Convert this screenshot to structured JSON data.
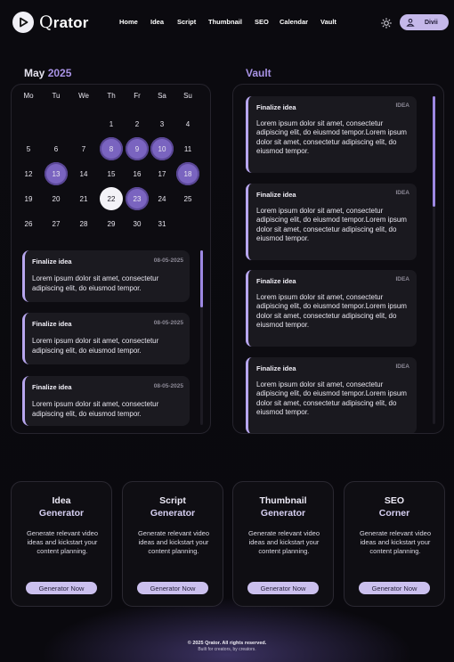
{
  "brand": {
    "name": "Qrator",
    "initial": "Q",
    "rest": "rator"
  },
  "nav": [
    "Home",
    "Idea",
    "Script",
    "Thumbnail",
    "SEO",
    "Calendar",
    "Vault"
  ],
  "user": {
    "name": "Divii"
  },
  "calendar": {
    "month": "May",
    "year": "2025",
    "weekdays": [
      "Mo",
      "Tu",
      "We",
      "Th",
      "Fr",
      "Sa",
      "Su"
    ],
    "days": [
      "1",
      "2",
      "3",
      "4",
      "5",
      "6",
      "7",
      "8",
      "9",
      "10",
      "11",
      "12",
      "13",
      "14",
      "15",
      "16",
      "17",
      "18",
      "19",
      "20",
      "21",
      "22",
      "23",
      "24",
      "25",
      "26",
      "27",
      "28",
      "29",
      "30",
      "31"
    ],
    "highlighted_days": [
      8,
      9,
      10,
      13,
      18,
      23
    ],
    "today": 22
  },
  "calendar_cards": [
    {
      "title": "Finalize idea",
      "date": "08-05-2025",
      "body": "Lorem ipsum dolor sit amet, consectetur adipiscing elit, do eiusmod tempor."
    },
    {
      "title": "Finalize idea",
      "date": "08-05-2025",
      "body": "Lorem ipsum dolor sit amet, consectetur adipiscing elit, do eiusmod tempor."
    },
    {
      "title": "Finalize idea",
      "date": "08-05-2025",
      "body": "Lorem ipsum dolor sit amet, consectetur adipiscing elit, do eiusmod tempor."
    }
  ],
  "vault": {
    "title": "Vault",
    "cards": [
      {
        "title": "Finalize idea",
        "tag": "IDEA",
        "body": "Lorem ipsum dolor sit amet, consectetur adipiscing elit, do eiusmod tempor.Lorem ipsum dolor sit amet, consectetur adipiscing elit, do eiusmod tempor."
      },
      {
        "title": "Finalize idea",
        "tag": "IDEA",
        "body": "Lorem ipsum dolor sit amet, consectetur adipiscing elit, do eiusmod tempor.Lorem ipsum dolor sit amet, consectetur adipiscing elit, do eiusmod tempor."
      },
      {
        "title": "Finalize idea",
        "tag": "IDEA",
        "body": "Lorem ipsum dolor sit amet, consectetur adipiscing elit, do eiusmod tempor.Lorem ipsum dolor sit amet, consectetur adipiscing elit, do eiusmod tempor."
      },
      {
        "title": "Finalize idea",
        "tag": "IDEA",
        "body": "Lorem ipsum dolor sit amet, consectetur adipiscing elit, do eiusmod tempor.Lorem ipsum dolor sit amet, consectetur adipiscing elit, do eiusmod tempor."
      }
    ]
  },
  "tools": [
    {
      "line1": "Idea",
      "line2": "Generator",
      "desc": "Generate relevant video ideas and kickstart your content planning.",
      "button": "Generator Now"
    },
    {
      "line1": "Script",
      "line2": "Generator",
      "desc": "Generate relevant video ideas and kickstart your content planning.",
      "button": "Generator Now"
    },
    {
      "line1": "Thumbnail",
      "line2": "Generator",
      "desc": "Generate relevant video ideas and kickstart your content planning.",
      "button": "Generator Now"
    },
    {
      "line1": "SEO",
      "line2": "Corner",
      "desc": "Generate relevant video ideas and kickstart your content planning.",
      "button": "Generator Now"
    }
  ],
  "footer": {
    "copyright": "© 2025 Qrator. All rights reserved.",
    "tagline": "Built for creators, by creators."
  },
  "colors": {
    "accent": "#a993e6",
    "highlight": "#7a64c0",
    "card_border": "#b7a6ee",
    "button": "#cbc0ee"
  },
  "icons": {
    "logo": "play-icon",
    "theme": "sun-icon",
    "avatar": "user-icon"
  }
}
